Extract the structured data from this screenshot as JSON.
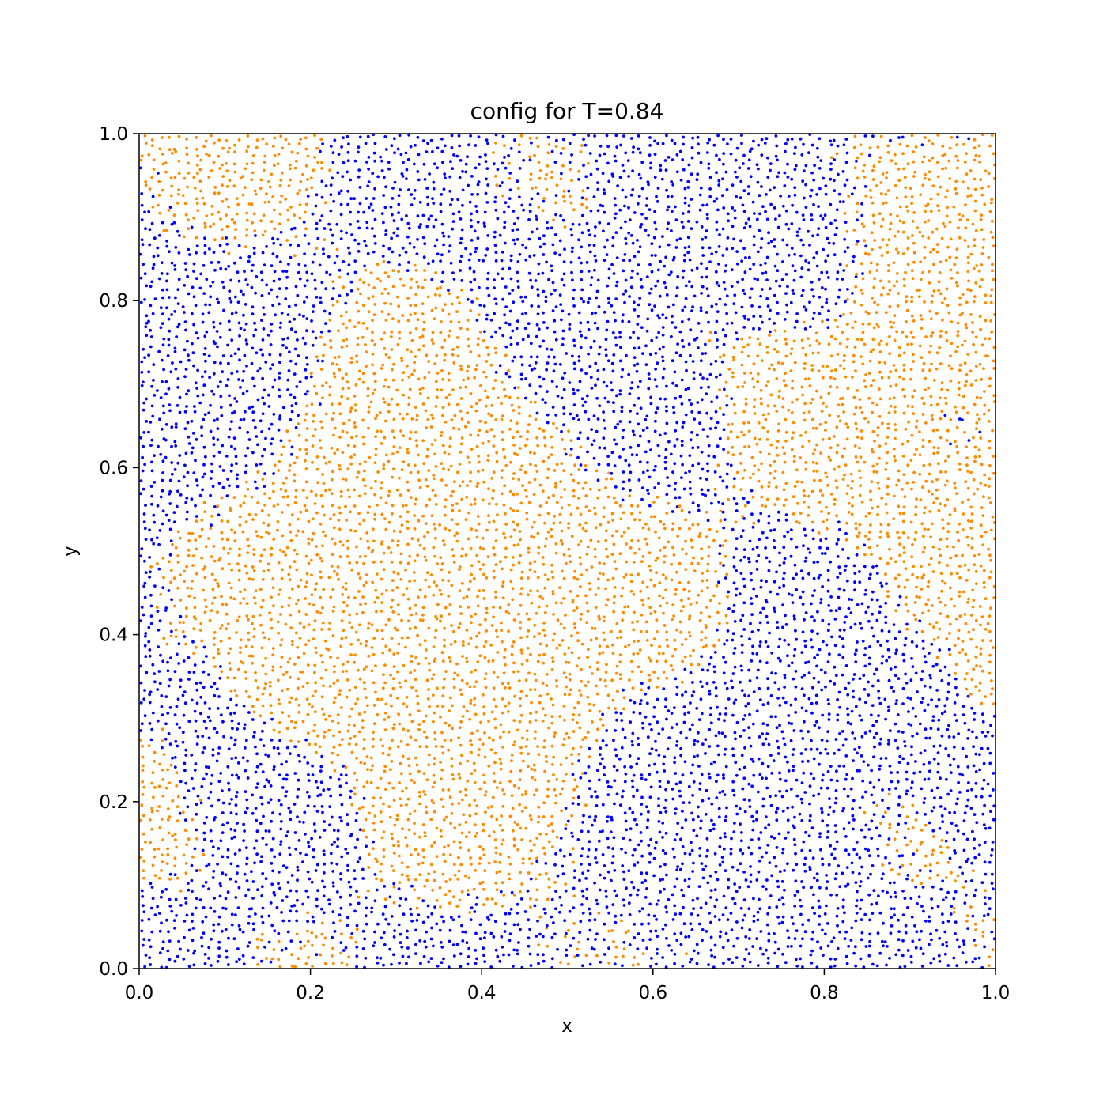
{
  "chart_data": {
    "type": "scatter",
    "title": "config for T=0.84",
    "xlabel": "x",
    "ylabel": "y",
    "xlim": [
      0.0,
      1.0
    ],
    "ylim": [
      0.0,
      1.0
    ],
    "x_ticks": [
      "0.0",
      "0.2",
      "0.4",
      "0.6",
      "0.8",
      "1.0"
    ],
    "y_ticks": [
      "0.0",
      "0.2",
      "0.4",
      "0.6",
      "0.8",
      "1.0"
    ],
    "grid": false,
    "legend": "none",
    "series": [
      {
        "color": "#0000ff",
        "description_of_distribution": "dense random packing, domains segregated from orange",
        "approx_count": 5000
      },
      {
        "color": "#ff8c00",
        "approx_count": 5000
      }
    ]
  }
}
